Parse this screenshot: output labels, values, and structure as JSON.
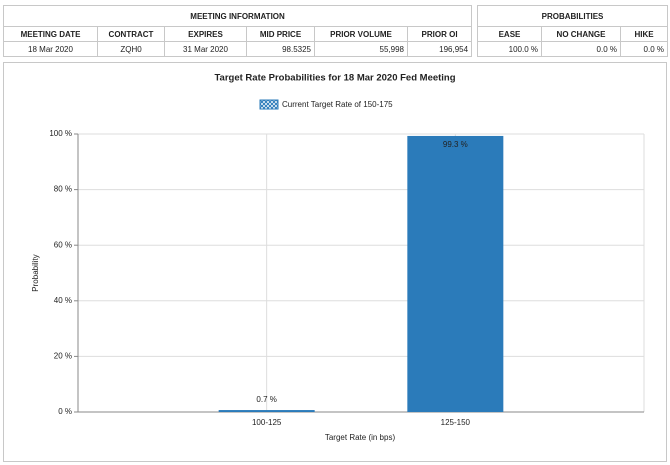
{
  "meeting_info": {
    "title": "MEETING INFORMATION",
    "headers": [
      "MEETING DATE",
      "CONTRACT",
      "EXPIRES",
      "MID PRICE",
      "PRIOR VOLUME",
      "PRIOR OI"
    ],
    "rows": [
      [
        "18 Mar 2020",
        "ZQH0",
        "31 Mar 2020",
        "98.5325",
        "55,998",
        "196,954"
      ]
    ]
  },
  "probabilities": {
    "title": "PROBABILITIES",
    "headers": [
      "EASE",
      "NO CHANGE",
      "HIKE"
    ],
    "rows": [
      [
        "100.0 %",
        "0.0 %",
        "0.0 %"
      ]
    ]
  },
  "chart_data": {
    "type": "bar",
    "title": "Target Rate Probabilities for 18 Mar 2020 Fed Meeting",
    "x_label": "Target Rate (in bps)",
    "y_label": "Probability",
    "categories": [
      "100-125",
      "125-150"
    ],
    "series": [
      {
        "name": "Current Target Rate of 150-175",
        "color": "#2b7bba",
        "values": [
          0.7,
          99.3
        ],
        "value_labels": [
          "0.7 %",
          "99.3 %"
        ]
      }
    ],
    "ylim": [
      0,
      100
    ],
    "yticks": [
      {
        "value": 0,
        "label": "0 %"
      },
      {
        "value": 20,
        "label": "20 %"
      },
      {
        "value": 40,
        "label": "40 %"
      },
      {
        "value": 60,
        "label": "60 %"
      },
      {
        "value": 80,
        "label": "80 %"
      },
      {
        "value": 100,
        "label": "100 %"
      }
    ],
    "grid": true
  }
}
